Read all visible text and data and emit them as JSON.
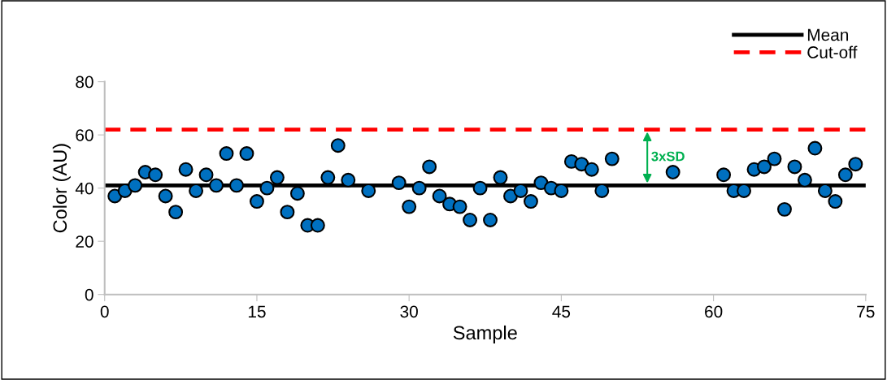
{
  "chart_data": {
    "type": "scatter",
    "xlabel": "Sample",
    "ylabel": "Color (AU)",
    "xlim": [
      0,
      75
    ],
    "xticks": [
      0,
      15,
      30,
      45,
      60,
      75
    ],
    "ylim": [
      0,
      80
    ],
    "yticks": [
      0,
      20,
      40,
      60,
      80
    ],
    "grid": false,
    "legend": "top right",
    "marker": "circle",
    "series": [
      {
        "color": "#0070c0",
        "x": [
          1,
          2,
          3,
          4,
          5,
          6,
          7,
          8,
          9,
          10,
          11,
          12,
          13,
          14,
          15,
          16,
          17,
          18,
          19,
          20,
          21,
          22,
          23,
          24,
          26,
          29,
          30,
          31,
          32,
          33,
          34,
          35,
          36,
          37,
          38,
          39,
          40,
          41,
          42,
          43,
          44,
          45,
          46,
          47,
          48,
          49,
          50,
          56,
          61,
          62,
          63,
          64,
          65,
          66,
          67,
          68,
          69,
          70,
          71,
          72,
          73,
          74
        ],
        "values": [
          37,
          39,
          41,
          46,
          45,
          37,
          31,
          47,
          39,
          45,
          41,
          53,
          41,
          53,
          35,
          40,
          44,
          31,
          38,
          26,
          26,
          44,
          56,
          43,
          39,
          42,
          33,
          40,
          48,
          37,
          34,
          33,
          28,
          40,
          28,
          44,
          37,
          39,
          35,
          42,
          40,
          39,
          50,
          49,
          47,
          39,
          51,
          46,
          45,
          39,
          39,
          47,
          48,
          51,
          32,
          48,
          43,
          55,
          39,
          35,
          45,
          49
        ]
      }
    ],
    "ref_lines": [
      {
        "axis": "y",
        "value": 41,
        "label": "Mean",
        "color": "#000000",
        "line_style": "solid"
      },
      {
        "axis": "y",
        "value": 62,
        "label": "Cut-off",
        "color": "#ff0000",
        "line_style": "dashed"
      }
    ],
    "annotations": [
      "3xSD"
    ]
  }
}
